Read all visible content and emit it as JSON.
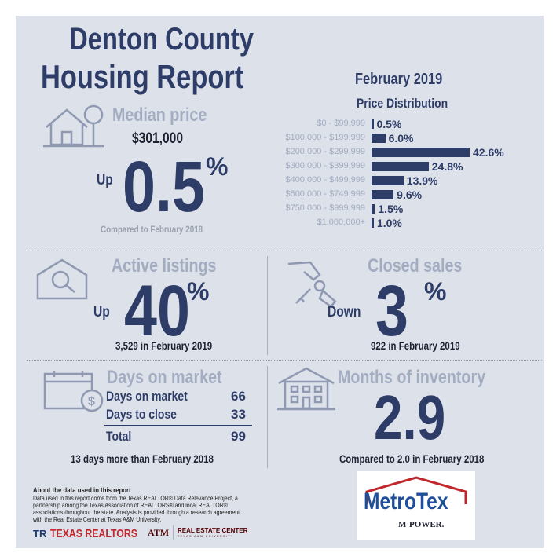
{
  "title": {
    "line1": "Denton County",
    "line2": "Housing Report"
  },
  "period": "February 2019",
  "median_price": {
    "title": "Median price",
    "value": "$301,000",
    "direction": "Up",
    "change": "0.5",
    "unit": "%",
    "comparison": "Compared to February 2018"
  },
  "active_listings": {
    "title": "Active listings",
    "direction": "Up",
    "change": "40",
    "unit": "%",
    "detail": "3,529 in February 2019"
  },
  "closed_sales": {
    "title": "Closed sales",
    "direction": "Down",
    "change": "3",
    "unit": "%",
    "detail": "922 in February 2019"
  },
  "days_on_market": {
    "title": "Days on market",
    "rows": [
      {
        "label": "Days on market",
        "value": "66"
      },
      {
        "label": "Days to close",
        "value": "33"
      }
    ],
    "total_label": "Total",
    "total_value": "99",
    "comparison": "13 days more than February 2018"
  },
  "months_inventory": {
    "title": "Months of inventory",
    "value": "2.9",
    "comparison": "Compared to 2.0 in February 2018"
  },
  "chart_data": {
    "type": "bar",
    "orientation": "horizontal",
    "title": "Price Distribution",
    "categories": [
      "$0 - $99,999",
      "$100,000 - $199,999",
      "$200,000 - $299,999",
      "$300,000 - $399,999",
      "$400,000 - $499,999",
      "$500,000 - $749,999",
      "$750,000 - $999,999",
      "$1,000,000+"
    ],
    "values": [
      0.5,
      6.0,
      42.6,
      24.8,
      13.9,
      9.6,
      1.5,
      1.0
    ],
    "value_labels": [
      "0.5%",
      "6.0%",
      "42.6%",
      "24.8%",
      "13.9%",
      "9.6%",
      "1.5%",
      "1.0%"
    ],
    "xlabel": "",
    "ylabel": "",
    "xlim": [
      0,
      45
    ]
  },
  "footer": {
    "heading": "About the data used in this report",
    "lines": [
      "Data used in this report come from the Texas REALTOR® Data Relevance Project, a",
      "partnership among the Texas Association of REALTORS® and local REALTOR®",
      "associations throughout the state. Analysis is provided through a research agreement",
      "with the Real Estate Center at Texas A&M University."
    ],
    "logo_texas_realtors": "TEXAS REALTORS",
    "logo_tamu": "ATM",
    "logo_rec": "REAL ESTATE CENTER",
    "logo_rec_sub": "TEXAS A&M UNIVERSITY"
  },
  "metrotex": {
    "name": "MetroTex",
    "tagline": "M-POWER."
  },
  "colors": {
    "navy": "#2e3d68",
    "light": "#a3adc2",
    "background": "#dde1e9",
    "red": "#c0272d"
  }
}
